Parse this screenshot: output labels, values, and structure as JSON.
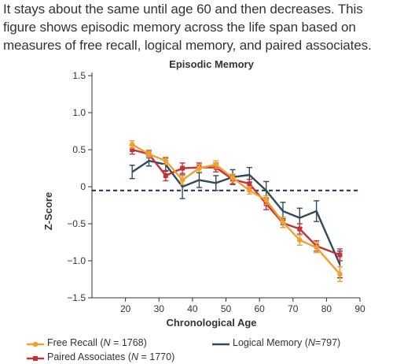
{
  "caption": {
    "lines": [
      "It stays about the same until age 60 and then decreases. This",
      "figure shows episodic memory across the life span based on",
      "measures of free recall, logical memory, and paired associates."
    ]
  },
  "legend_items": {
    "free_recall": "Free Recall (N = 1768)",
    "logical_memory": "Logical Memory (N=797)",
    "paired_associates": "Paired Associates (N = 1770)"
  },
  "chart_data": {
    "type": "line",
    "title": "Episodic Memory",
    "xlabel": "Chronological Age",
    "ylabel": "Z-Score",
    "xlim": [
      10,
      90
    ],
    "ylim": [
      -1.5,
      1.5
    ],
    "xticks": [
      "20",
      "30",
      "40",
      "50",
      "60",
      "70",
      "80",
      "90"
    ],
    "yticks": [
      "1.5",
      "1.0",
      "0.5",
      "0",
      "−0.5",
      "−1.0",
      "−1.5"
    ],
    "reference_line_y": -0.05,
    "grid": false,
    "legend_position": "bottom",
    "series": [
      {
        "name": "Free Recall (N = 1768)",
        "color": "#f0a030",
        "x": [
          22,
          27,
          32,
          37,
          42,
          47,
          52,
          57,
          62,
          67,
          72,
          77,
          84
        ],
        "y": [
          0.57,
          0.44,
          0.35,
          0.09,
          0.25,
          0.3,
          0.12,
          -0.05,
          -0.18,
          -0.48,
          -0.72,
          -0.82,
          -1.18
        ],
        "err": [
          0.05,
          0.04,
          0.05,
          0.06,
          0.05,
          0.05,
          0.05,
          0.05,
          0.06,
          0.07,
          0.07,
          0.07,
          0.1
        ]
      },
      {
        "name": "Paired Associates (N = 1770)",
        "color": "#c0323c",
        "x": [
          22,
          27,
          32,
          37,
          42,
          47,
          52,
          57,
          62,
          67,
          72,
          77,
          84
        ],
        "y": [
          0.5,
          0.44,
          0.15,
          0.25,
          0.26,
          0.26,
          0.1,
          0.04,
          -0.23,
          -0.49,
          -0.57,
          -0.8,
          -0.92
        ],
        "err": [
          0.06,
          0.05,
          0.07,
          0.07,
          0.06,
          0.06,
          0.06,
          0.06,
          0.08,
          0.06,
          0.07,
          0.07,
          0.08
        ]
      },
      {
        "name": "Logical Memory (N=797)",
        "color": "#2f4a5a",
        "x": [
          22,
          27,
          32,
          37,
          42,
          47,
          52,
          57,
          62,
          67,
          72,
          77,
          84
        ],
        "y": [
          0.2,
          0.35,
          0.3,
          0.0,
          0.09,
          0.05,
          0.13,
          0.16,
          -0.05,
          -0.33,
          -0.42,
          -0.33,
          -1.05
        ],
        "err": [
          0.09,
          0.07,
          0.09,
          0.16,
          0.1,
          0.1,
          0.1,
          0.1,
          0.12,
          0.12,
          0.13,
          0.14,
          0.18
        ]
      }
    ]
  }
}
